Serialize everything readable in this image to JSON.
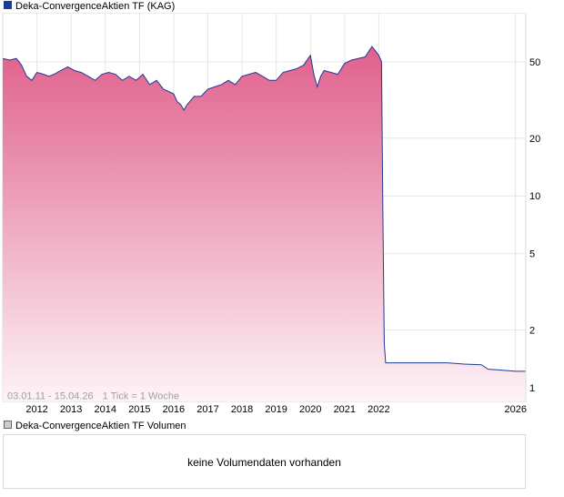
{
  "price_legend": {
    "label": "Deka-ConvergenceAktien TF (KAG)",
    "color": "#1f3a93"
  },
  "volume_legend": {
    "label": "Deka-ConvergenceAktien TF Volumen",
    "color": "#cccccc"
  },
  "date_range": "03.01.11 - 15.04.26",
  "tick_info": "1 Tick = 1 Woche",
  "volume_message": "keine Volumendaten vorhanden",
  "chart_data": {
    "type": "area",
    "title": "Deka-ConvergenceAktien TF (KAG)",
    "xlabel": "",
    "ylabel": "",
    "y_scale": "log",
    "ylim": [
      0.85,
      90
    ],
    "xlim": [
      2011.0,
      2026.3
    ],
    "grid": true,
    "y_ticks": [
      1,
      2,
      5,
      10,
      20,
      50
    ],
    "x_ticks": [
      2012,
      2013,
      2014,
      2015,
      2016,
      2017,
      2018,
      2019,
      2020,
      2021,
      2022,
      2026
    ],
    "fill_gradient": [
      "#e0608c",
      "#fdf3f7"
    ],
    "line_color": "#1f3a93",
    "series": [
      {
        "x": [
          2011.0,
          2011.2,
          2011.4,
          2011.55,
          2011.7,
          2011.85,
          2012.0,
          2012.2,
          2012.35,
          2012.5,
          2012.7,
          2012.9,
          2013.1,
          2013.3,
          2013.5,
          2013.7,
          2013.9,
          2014.1,
          2014.3,
          2014.5,
          2014.7,
          2014.9,
          2015.1,
          2015.3,
          2015.5,
          2015.7,
          2015.85,
          2016.0,
          2016.1,
          2016.2,
          2016.3,
          2016.4,
          2016.6,
          2016.8,
          2017.0,
          2017.2,
          2017.4,
          2017.6,
          2017.8,
          2018.0,
          2018.2,
          2018.4,
          2018.6,
          2018.8,
          2019.0,
          2019.2,
          2019.4,
          2019.6,
          2019.8,
          2020.0,
          2020.1,
          2020.2,
          2020.3,
          2020.4,
          2020.6,
          2020.8,
          2021.0,
          2021.2,
          2021.4,
          2021.6,
          2021.8,
          2021.9,
          2022.0,
          2022.08,
          2022.12,
          2022.16,
          2022.2,
          2022.5,
          2023.0,
          2023.5,
          2024.0,
          2024.5,
          2025.0,
          2025.2,
          2025.5,
          2026.0,
          2026.29
        ],
        "y": [
          52,
          51,
          52,
          48,
          42,
          40,
          44,
          43,
          42,
          43,
          45,
          47,
          45,
          44,
          42,
          40,
          43,
          44,
          43,
          40,
          42,
          40,
          43,
          38,
          40,
          36,
          35,
          34,
          31,
          30,
          28,
          30,
          33,
          33,
          36,
          37,
          38,
          40,
          38,
          42,
          43,
          44,
          42,
          40,
          40,
          44,
          45,
          46,
          48,
          54,
          43,
          37,
          42,
          45,
          44,
          43,
          49,
          51,
          52,
          53,
          60,
          57,
          54,
          50,
          8,
          1.7,
          1.35,
          1.35,
          1.35,
          1.35,
          1.35,
          1.33,
          1.32,
          1.25,
          1.24,
          1.22,
          1.22
        ]
      }
    ]
  }
}
